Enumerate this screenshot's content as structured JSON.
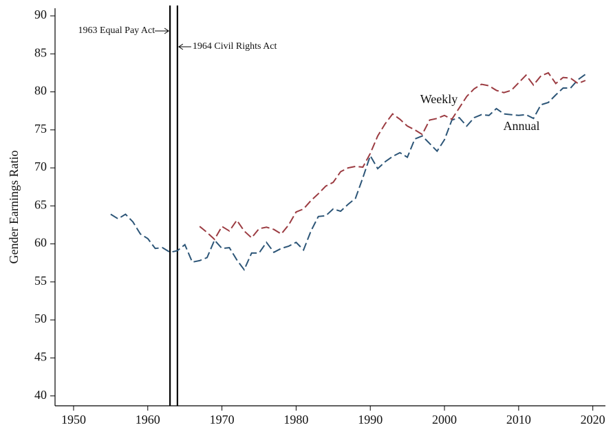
{
  "chart_data": {
    "type": "line",
    "y_label": "Gender Earnings Ratio",
    "x": [
      1955,
      1956,
      1957,
      1958,
      1959,
      1960,
      1961,
      1962,
      1963,
      1964,
      1965,
      1966,
      1967,
      1968,
      1969,
      1970,
      1971,
      1972,
      1973,
      1974,
      1975,
      1976,
      1977,
      1978,
      1979,
      1980,
      1981,
      1982,
      1983,
      1984,
      1985,
      1986,
      1987,
      1988,
      1989,
      1990,
      1991,
      1992,
      1993,
      1994,
      1995,
      1996,
      1997,
      1998,
      1999,
      2000,
      2001,
      2002,
      2003,
      2004,
      2005,
      2006,
      2007,
      2008,
      2009,
      2010,
      2011,
      2012,
      2013,
      2014,
      2015,
      2016,
      2017,
      2018,
      2019
    ],
    "series": [
      {
        "name": "Annual",
        "color": "#2c5577",
        "values": [
          63.9,
          63.3,
          63.9,
          62.9,
          61.3,
          60.7,
          59.4,
          59.5,
          58.9,
          59.1,
          59.9,
          57.6,
          57.8,
          58.2,
          60.5,
          59.4,
          59.5,
          57.9,
          56.6,
          58.8,
          58.8,
          60.2,
          58.9,
          59.4,
          59.7,
          60.2,
          59.2,
          61.7,
          63.6,
          63.7,
          64.6,
          64.3,
          65.2,
          66.0,
          68.7,
          71.6,
          69.9,
          70.8,
          71.5,
          72.0,
          71.4,
          73.8,
          74.2,
          73.2,
          72.2,
          73.7,
          76.3,
          76.6,
          75.5,
          76.6,
          77.0,
          76.9,
          77.8,
          77.1,
          77.0,
          76.9,
          77.0,
          76.5,
          78.3,
          78.6,
          79.6,
          80.5,
          80.5,
          81.6,
          82.3
        ]
      },
      {
        "name": "Weekly",
        "color": "#9b3b41",
        "values": [
          null,
          null,
          null,
          null,
          null,
          null,
          null,
          null,
          null,
          null,
          null,
          null,
          62.3,
          61.5,
          60.6,
          62.3,
          61.7,
          63.1,
          61.7,
          60.8,
          62.0,
          62.2,
          61.9,
          61.3,
          62.5,
          64.2,
          64.6,
          65.7,
          66.6,
          67.6,
          68.1,
          69.5,
          70.0,
          70.2,
          70.1,
          71.9,
          74.2,
          75.8,
          77.1,
          76.4,
          75.5,
          75.0,
          74.4,
          76.3,
          76.5,
          76.9,
          76.4,
          77.9,
          79.4,
          80.4,
          81.0,
          80.8,
          80.2,
          79.9,
          80.2,
          81.2,
          82.2,
          80.9,
          82.1,
          82.5,
          81.1,
          81.9,
          81.8,
          81.1,
          81.5
        ]
      }
    ],
    "annotations": [
      {
        "text": "1963 Equal Pay Act",
        "x": 1963
      },
      {
        "text": "1964 Civil Rights Act",
        "x": 1964
      }
    ],
    "xlim": [
      1947.5,
      2021.7
    ],
    "xticks": [
      1950,
      1960,
      1970,
      1980,
      1990,
      2000,
      2010,
      2020
    ],
    "ylim": [
      38.7,
      91
    ],
    "yticks": [
      40,
      45,
      50,
      55,
      60,
      65,
      70,
      75,
      80,
      85,
      90
    ]
  }
}
